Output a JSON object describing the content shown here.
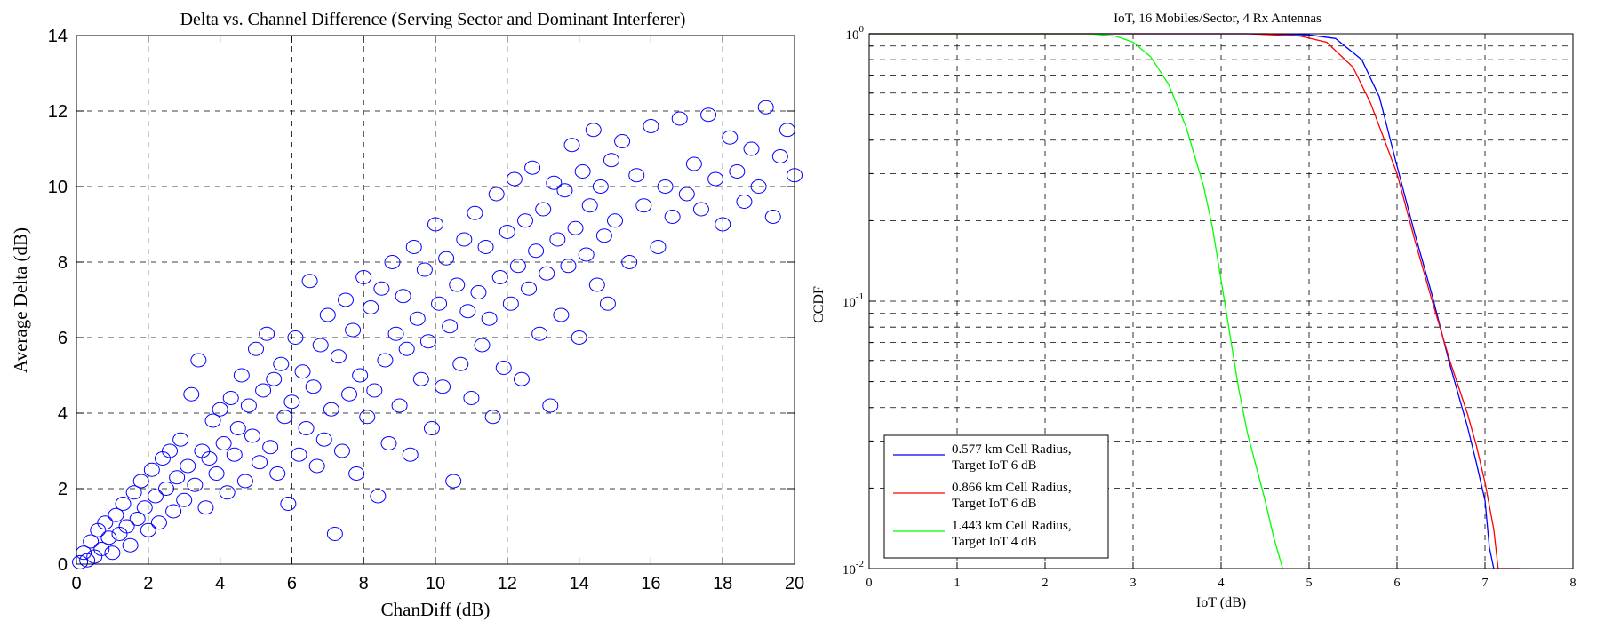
{
  "chart_data": [
    {
      "type": "scatter",
      "title": "Delta vs. Channel Difference (Serving Sector and Dominant Interferer)",
      "xlabel": "ChanDiff (dB)",
      "ylabel": "Average Delta (dB)",
      "xlim": [
        0,
        20
      ],
      "ylim": [
        0,
        14
      ],
      "xticks": [
        "0",
        "2",
        "4",
        "6",
        "8",
        "10",
        "12",
        "14",
        "16",
        "18",
        "20"
      ],
      "yticks": [
        "0",
        "2",
        "4",
        "6",
        "8",
        "10",
        "12",
        "14"
      ],
      "grid": true,
      "marker": "open circle",
      "color": "#0000ff",
      "series": [
        {
          "points": [
            [
              0.1,
              0.05
            ],
            [
              0.2,
              0.3
            ],
            [
              0.3,
              0.1
            ],
            [
              0.4,
              0.6
            ],
            [
              0.5,
              0.2
            ],
            [
              0.6,
              0.9
            ],
            [
              0.7,
              0.4
            ],
            [
              0.8,
              1.1
            ],
            [
              0.9,
              0.7
            ],
            [
              1.0,
              0.3
            ],
            [
              1.1,
              1.3
            ],
            [
              1.2,
              0.8
            ],
            [
              1.3,
              1.6
            ],
            [
              1.4,
              1.0
            ],
            [
              1.5,
              0.5
            ],
            [
              1.6,
              1.9
            ],
            [
              1.7,
              1.2
            ],
            [
              1.8,
              2.2
            ],
            [
              1.9,
              1.5
            ],
            [
              2.0,
              0.9
            ],
            [
              2.1,
              2.5
            ],
            [
              2.2,
              1.8
            ],
            [
              2.3,
              1.1
            ],
            [
              2.4,
              2.8
            ],
            [
              2.5,
              2.0
            ],
            [
              2.6,
              3.0
            ],
            [
              2.7,
              1.4
            ],
            [
              2.8,
              2.3
            ],
            [
              2.9,
              3.3
            ],
            [
              3.0,
              1.7
            ],
            [
              3.1,
              2.6
            ],
            [
              3.2,
              4.5
            ],
            [
              3.3,
              2.1
            ],
            [
              3.4,
              5.4
            ],
            [
              3.5,
              3.0
            ],
            [
              3.6,
              1.5
            ],
            [
              3.7,
              2.8
            ],
            [
              3.8,
              3.8
            ],
            [
              3.9,
              2.4
            ],
            [
              4.0,
              4.1
            ],
            [
              4.1,
              3.2
            ],
            [
              4.2,
              1.9
            ],
            [
              4.3,
              4.4
            ],
            [
              4.4,
              2.9
            ],
            [
              4.5,
              3.6
            ],
            [
              4.6,
              5.0
            ],
            [
              4.7,
              2.2
            ],
            [
              4.8,
              4.2
            ],
            [
              4.9,
              3.4
            ],
            [
              5.0,
              5.7
            ],
            [
              5.1,
              2.7
            ],
            [
              5.2,
              4.6
            ],
            [
              5.3,
              6.1
            ],
            [
              5.4,
              3.1
            ],
            [
              5.5,
              4.9
            ],
            [
              5.6,
              2.4
            ],
            [
              5.7,
              5.3
            ],
            [
              5.8,
              3.9
            ],
            [
              5.9,
              1.6
            ],
            [
              6.0,
              4.3
            ],
            [
              6.1,
              6.0
            ],
            [
              6.2,
              2.9
            ],
            [
              6.3,
              5.1
            ],
            [
              6.4,
              3.6
            ],
            [
              6.5,
              7.5
            ],
            [
              6.6,
              4.7
            ],
            [
              6.7,
              2.6
            ],
            [
              6.8,
              5.8
            ],
            [
              6.9,
              3.3
            ],
            [
              7.0,
              6.6
            ],
            [
              7.1,
              4.1
            ],
            [
              7.2,
              0.8
            ],
            [
              7.3,
              5.5
            ],
            [
              7.4,
              3.0
            ],
            [
              7.5,
              7.0
            ],
            [
              7.6,
              4.5
            ],
            [
              7.7,
              6.2
            ],
            [
              7.8,
              2.4
            ],
            [
              7.9,
              5.0
            ],
            [
              8.0,
              7.6
            ],
            [
              8.1,
              3.9
            ],
            [
              8.2,
              6.8
            ],
            [
              8.3,
              4.6
            ],
            [
              8.4,
              1.8
            ],
            [
              8.5,
              7.3
            ],
            [
              8.6,
              5.4
            ],
            [
              8.7,
              3.2
            ],
            [
              8.8,
              8.0
            ],
            [
              8.9,
              6.1
            ],
            [
              9.0,
              4.2
            ],
            [
              9.1,
              7.1
            ],
            [
              9.2,
              5.7
            ],
            [
              9.3,
              2.9
            ],
            [
              9.4,
              8.4
            ],
            [
              9.5,
              6.5
            ],
            [
              9.6,
              4.9
            ],
            [
              9.7,
              7.8
            ],
            [
              9.8,
              5.9
            ],
            [
              9.9,
              3.6
            ],
            [
              10.0,
              9.0
            ],
            [
              10.1,
              6.9
            ],
            [
              10.2,
              4.7
            ],
            [
              10.3,
              8.1
            ],
            [
              10.4,
              6.3
            ],
            [
              10.5,
              2.2
            ],
            [
              10.6,
              7.4
            ],
            [
              10.7,
              5.3
            ],
            [
              10.8,
              8.6
            ],
            [
              10.9,
              6.7
            ],
            [
              11.0,
              4.4
            ],
            [
              11.1,
              9.3
            ],
            [
              11.2,
              7.2
            ],
            [
              11.3,
              5.8
            ],
            [
              11.4,
              8.4
            ],
            [
              11.5,
              6.5
            ],
            [
              11.6,
              3.9
            ],
            [
              11.7,
              9.8
            ],
            [
              11.8,
              7.6
            ],
            [
              11.9,
              5.2
            ],
            [
              12.0,
              8.8
            ],
            [
              12.1,
              6.9
            ],
            [
              12.2,
              10.2
            ],
            [
              12.3,
              7.9
            ],
            [
              12.4,
              4.9
            ],
            [
              12.5,
              9.1
            ],
            [
              12.6,
              7.3
            ],
            [
              12.7,
              10.5
            ],
            [
              12.8,
              8.3
            ],
            [
              12.9,
              6.1
            ],
            [
              13.0,
              9.4
            ],
            [
              13.1,
              7.7
            ],
            [
              13.2,
              4.2
            ],
            [
              13.3,
              10.1
            ],
            [
              13.4,
              8.6
            ],
            [
              13.5,
              6.6
            ],
            [
              13.6,
              9.9
            ],
            [
              13.7,
              7.9
            ],
            [
              13.8,
              11.1
            ],
            [
              13.9,
              8.9
            ],
            [
              14.0,
              6.0
            ],
            [
              14.1,
              10.4
            ],
            [
              14.2,
              8.2
            ],
            [
              14.3,
              9.5
            ],
            [
              14.4,
              11.5
            ],
            [
              14.5,
              7.4
            ],
            [
              14.6,
              10.0
            ],
            [
              14.7,
              8.7
            ],
            [
              14.8,
              6.9
            ],
            [
              14.9,
              10.7
            ],
            [
              15.0,
              9.1
            ],
            [
              15.2,
              11.2
            ],
            [
              15.4,
              8.0
            ],
            [
              15.6,
              10.3
            ],
            [
              15.8,
              9.5
            ],
            [
              16.0,
              11.6
            ],
            [
              16.2,
              8.4
            ],
            [
              16.4,
              10.0
            ],
            [
              16.6,
              9.2
            ],
            [
              16.8,
              11.8
            ],
            [
              17.0,
              9.8
            ],
            [
              17.2,
              10.6
            ],
            [
              17.4,
              9.4
            ],
            [
              17.6,
              11.9
            ],
            [
              17.8,
              10.2
            ],
            [
              18.0,
              9.0
            ],
            [
              18.2,
              11.3
            ],
            [
              18.4,
              10.4
            ],
            [
              18.6,
              9.6
            ],
            [
              18.8,
              11.0
            ],
            [
              19.0,
              10.0
            ],
            [
              19.2,
              12.1
            ],
            [
              19.4,
              9.2
            ],
            [
              19.6,
              10.8
            ],
            [
              19.8,
              11.5
            ],
            [
              20.0,
              10.3
            ]
          ]
        }
      ]
    },
    {
      "type": "line",
      "title": "IoT, 16 Mobiles/Sector, 4 Rx Antennas",
      "xlabel": "IoT (dB)",
      "ylabel": "CCDF",
      "xlim": [
        0,
        8
      ],
      "ylim": [
        0.01,
        1
      ],
      "yscale": "log",
      "xticks": [
        "0",
        "1",
        "2",
        "3",
        "4",
        "5",
        "6",
        "7",
        "8"
      ],
      "ytick_base": "10",
      "ytick_exponents": [
        "0",
        "-1",
        "-2"
      ],
      "grid": true,
      "legend": "bottom-left",
      "series": [
        {
          "name": "0.577 km Cell Radius, Target IoT 6 dB",
          "color": "#0000ff",
          "x": [
            0,
            4.5,
            5.0,
            5.3,
            5.6,
            5.8,
            6.0,
            6.2,
            6.4,
            6.6,
            6.8,
            6.9,
            7.0,
            7.05,
            7.1
          ],
          "y": [
            1.0,
            1.0,
            0.99,
            0.96,
            0.8,
            0.58,
            0.32,
            0.18,
            0.105,
            0.058,
            0.034,
            0.025,
            0.018,
            0.012,
            0.01
          ]
        },
        {
          "name": "0.866 km Cell Radius, Target IoT 6 dB",
          "color": "#ff0000",
          "x": [
            0,
            4.3,
            4.9,
            5.2,
            5.5,
            5.7,
            6.0,
            6.2,
            6.4,
            6.6,
            6.8,
            6.9,
            7.0,
            7.1,
            7.15,
            7.4
          ],
          "y": [
            1.0,
            1.0,
            0.98,
            0.93,
            0.75,
            0.55,
            0.3,
            0.17,
            0.1,
            0.06,
            0.038,
            0.029,
            0.021,
            0.014,
            0.01,
            0.01
          ]
        },
        {
          "name": "1.443 km Cell Radius, Target IoT 4 dB",
          "color": "#00ff00",
          "x": [
            0,
            2.5,
            2.8,
            3.0,
            3.2,
            3.4,
            3.6,
            3.8,
            3.9,
            4.0,
            4.1,
            4.2,
            4.3,
            4.4,
            4.5,
            4.6,
            4.7
          ],
          "y": [
            1.0,
            1.0,
            0.98,
            0.93,
            0.82,
            0.65,
            0.45,
            0.27,
            0.19,
            0.12,
            0.075,
            0.047,
            0.032,
            0.024,
            0.018,
            0.013,
            0.01
          ]
        }
      ]
    }
  ]
}
